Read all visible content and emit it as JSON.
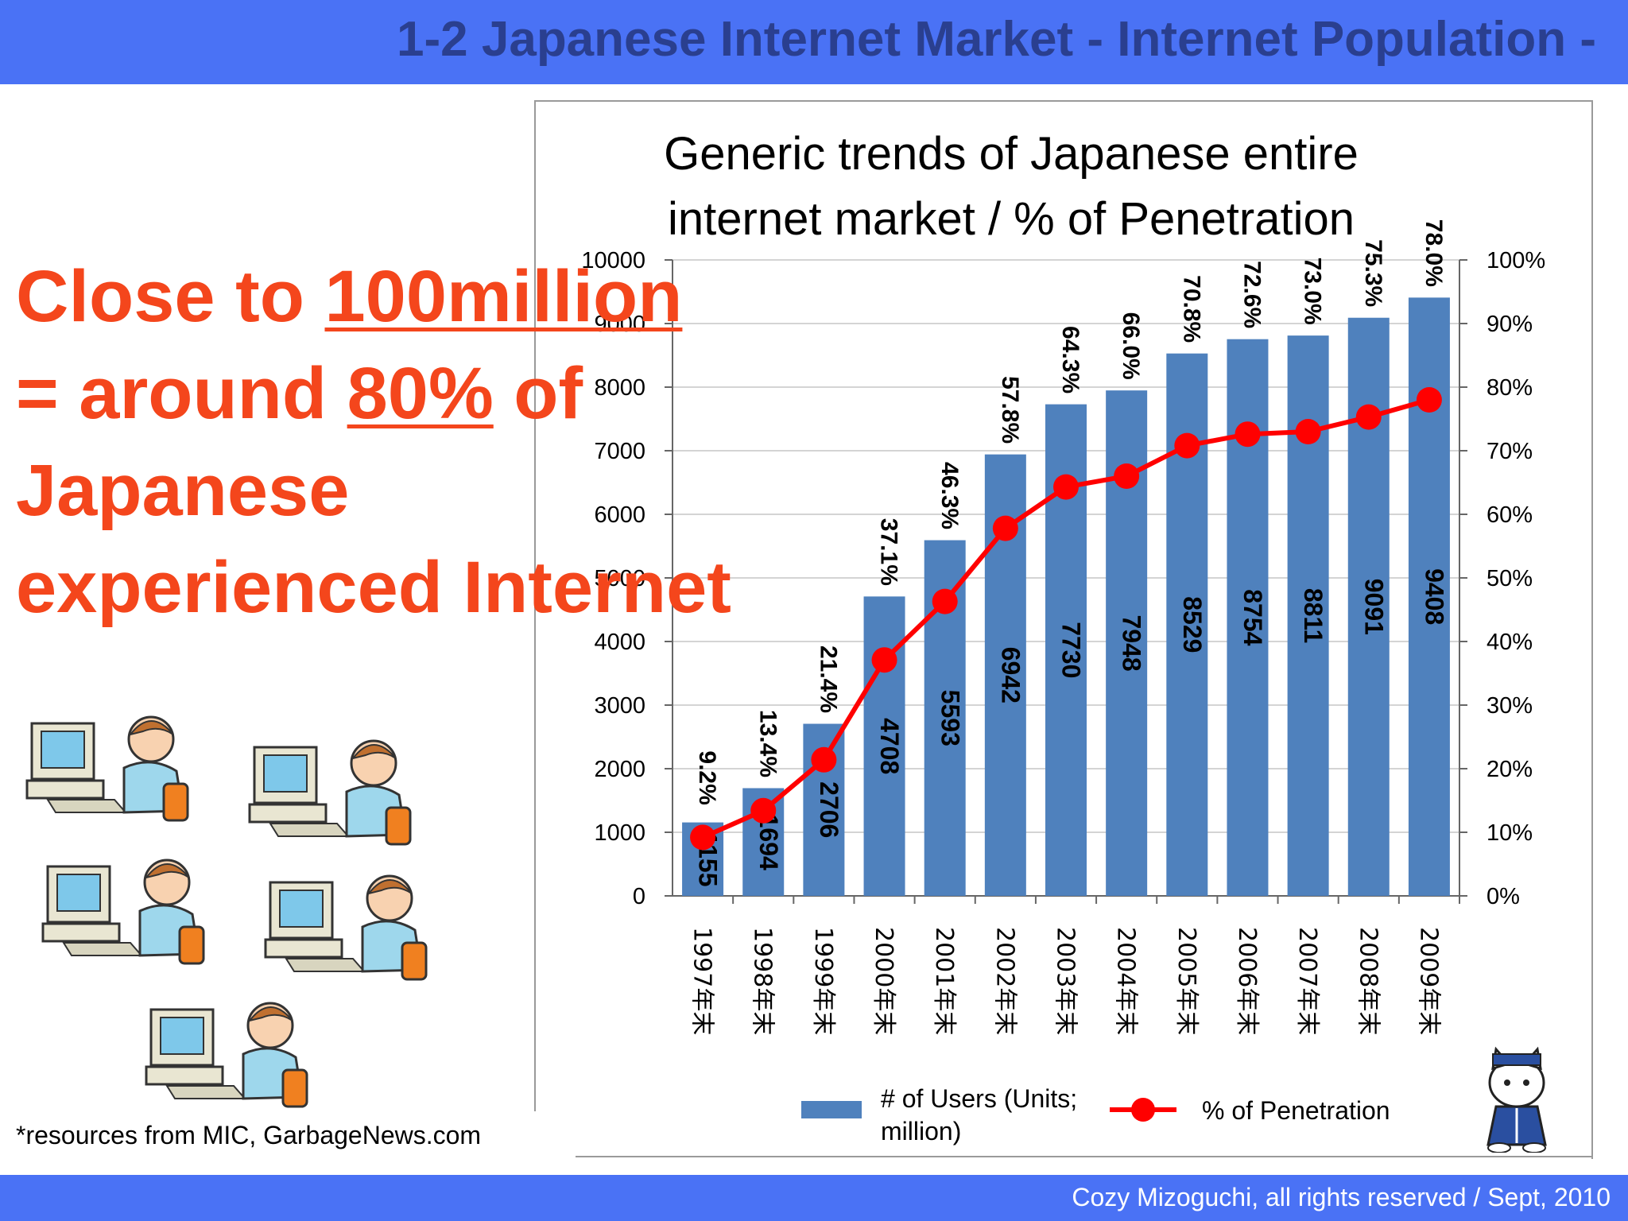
{
  "header": {
    "title": "1-2 Japanese Internet Market  - Internet Population -"
  },
  "footer": {
    "copyright": "Cozy Mizoguchi, all rights reserved / Sept, 2010"
  },
  "headline": {
    "part1": "Close to ",
    "part2": "100million",
    "part3": "= around ",
    "part4": "80%",
    "part5": " of",
    "part6": "Japanese",
    "part7": "experienced Internet"
  },
  "source_note": "*resources from MIC, GarbageNews.com",
  "colors": {
    "bar": "#4f81bd",
    "line": "#ff0000",
    "headline": "#f4461c",
    "banner": "#4a72f5",
    "title": "#2a3f8f"
  },
  "icons": [
    "computer-user-icon",
    "cat-mascot-icon"
  ],
  "chart_data": {
    "type": "bar",
    "title_line1": "Generic trends of Japanese entire",
    "title_line2": "internet market / % of Penetration",
    "categories": [
      "1997年末",
      "1998年末",
      "1999年末",
      "2000年末",
      "2001年末",
      "2002年末",
      "2003年末",
      "2004年末",
      "2005年末",
      "2006年末",
      "2007年末",
      "2008年末",
      "2009年末"
    ],
    "series": [
      {
        "name": "# of Users (Units; million)",
        "type": "bar",
        "axis": "left",
        "values": [
          1155,
          1694,
          2706,
          4708,
          5593,
          6942,
          7730,
          7948,
          8529,
          8754,
          8811,
          9091,
          9408
        ],
        "labels": [
          "1155",
          "1694",
          "2706",
          "4708",
          "5593",
          "6942",
          "7730",
          "7948",
          "8529",
          "8754",
          "8811",
          "9091",
          "9408"
        ]
      },
      {
        "name": "% of Penetration",
        "type": "line",
        "axis": "right",
        "values": [
          9.2,
          13.4,
          21.4,
          37.1,
          46.3,
          57.8,
          64.3,
          66.0,
          70.8,
          72.6,
          73.0,
          75.3,
          78.0
        ],
        "labels": [
          "9.2%",
          "13.4%",
          "21.4%",
          "37.1%",
          "46.3%",
          "57.8%",
          "64.3%",
          "66.0%",
          "70.8%",
          "72.6%",
          "73.0%",
          "75.3%",
          "78.0%"
        ]
      }
    ],
    "ylim_left": [
      0,
      10000
    ],
    "ylim_right": [
      0,
      100
    ],
    "yticks_left": [
      "0",
      "1000",
      "2000",
      "3000",
      "4000",
      "5000",
      "6000",
      "7000",
      "8000",
      "9000",
      "10000"
    ],
    "yticks_right": [
      "0%",
      "10%",
      "20%",
      "30%",
      "40%",
      "50%",
      "60%",
      "70%",
      "80%",
      "90%",
      "100%"
    ],
    "legend": {
      "bar_label_line1": "# of Users (Units;",
      "bar_label_line2": "million)",
      "line_label": "% of Penetration",
      "placement": "bottom"
    },
    "grid": true
  }
}
